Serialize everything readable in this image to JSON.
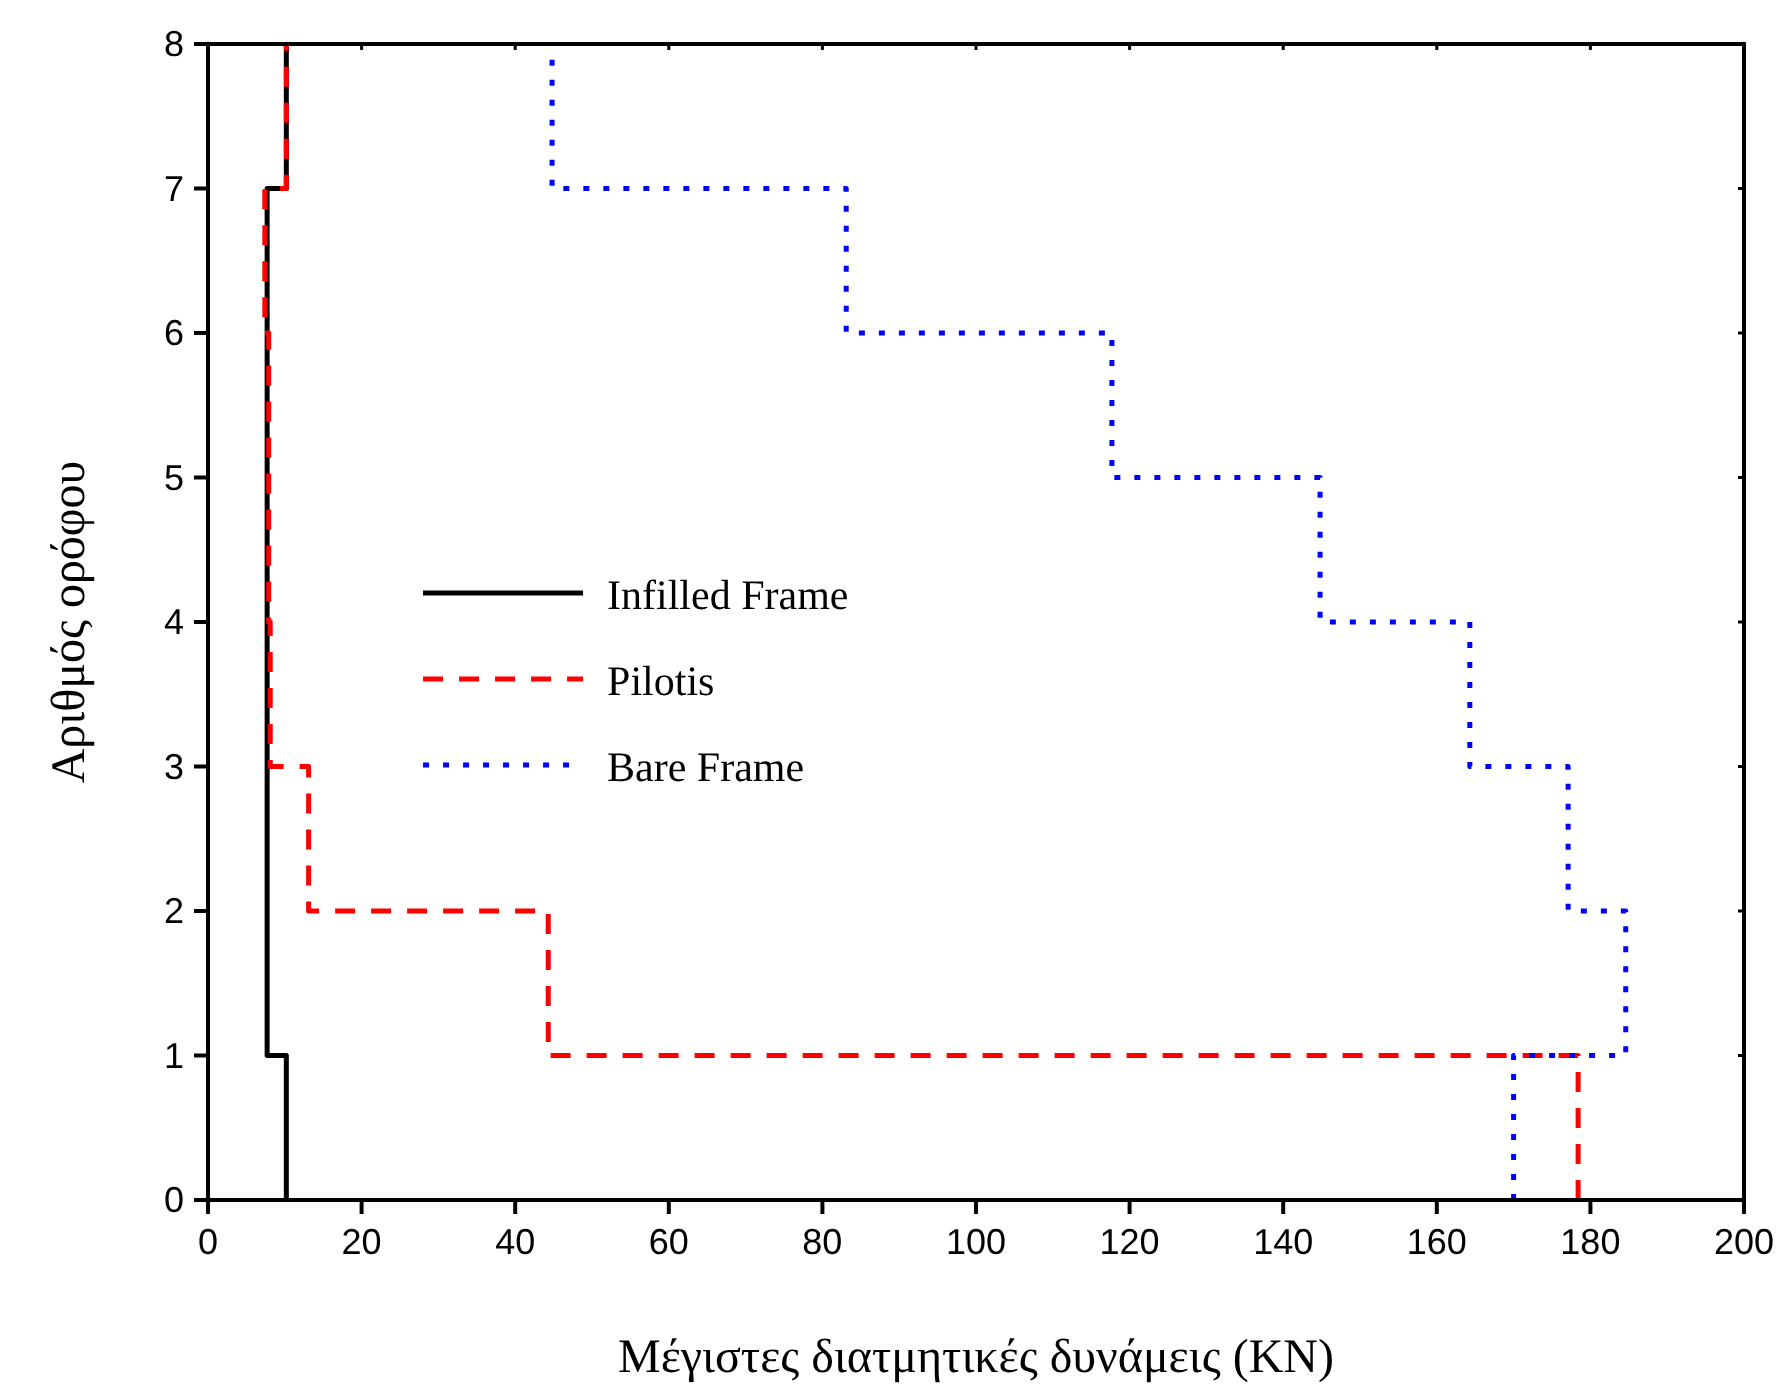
{
  "chart_data": {
    "type": "line",
    "xlabel": "Μέγιστες διατμητικές δυνάμεις (KN)",
    "ylabel": "Αριθμός ορόφου",
    "xlim": [
      0,
      200
    ],
    "xticks": [
      0,
      20,
      40,
      60,
      80,
      100,
      120,
      140,
      160,
      180,
      200
    ],
    "ylim": [
      0,
      8
    ],
    "yticks": [
      0,
      1,
      2,
      3,
      4,
      5,
      6,
      7,
      8
    ],
    "grid": false,
    "legend": "left",
    "marker": "none",
    "series": [
      {
        "name": "Infilled Frame",
        "color": "#000000",
        "line_style": "solid",
        "x": [
          10.2,
          10.2,
          7.7,
          7.7,
          10.2,
          10.2
        ],
        "values": [
          0,
          1,
          1,
          7,
          7,
          8
        ]
      },
      {
        "name": "Pilotis",
        "color": "#ff0000",
        "line_style": "dashed",
        "x": [
          178.4,
          178.4,
          44.3,
          44.3,
          13.1,
          13.1,
          8.1,
          8.1,
          7.9,
          7.9,
          7.4,
          7.4,
          10.2,
          10.2
        ],
        "values": [
          0,
          1,
          1,
          2,
          2,
          3,
          3,
          4,
          4,
          6,
          6,
          7,
          7,
          8
        ]
      },
      {
        "name": "Bare Frame",
        "color": "#0000ff",
        "line_style": "dotted",
        "x": [
          170,
          170,
          184.6,
          184.6,
          177.1,
          177.1,
          164.3,
          164.3,
          144.8,
          144.8,
          117.7,
          117.7,
          83.1,
          83.1,
          44.8,
          44.8
        ],
        "values": [
          0,
          1,
          1,
          2,
          2,
          3,
          3,
          4,
          4,
          5,
          5,
          6,
          6,
          7,
          7,
          8
        ]
      }
    ]
  }
}
